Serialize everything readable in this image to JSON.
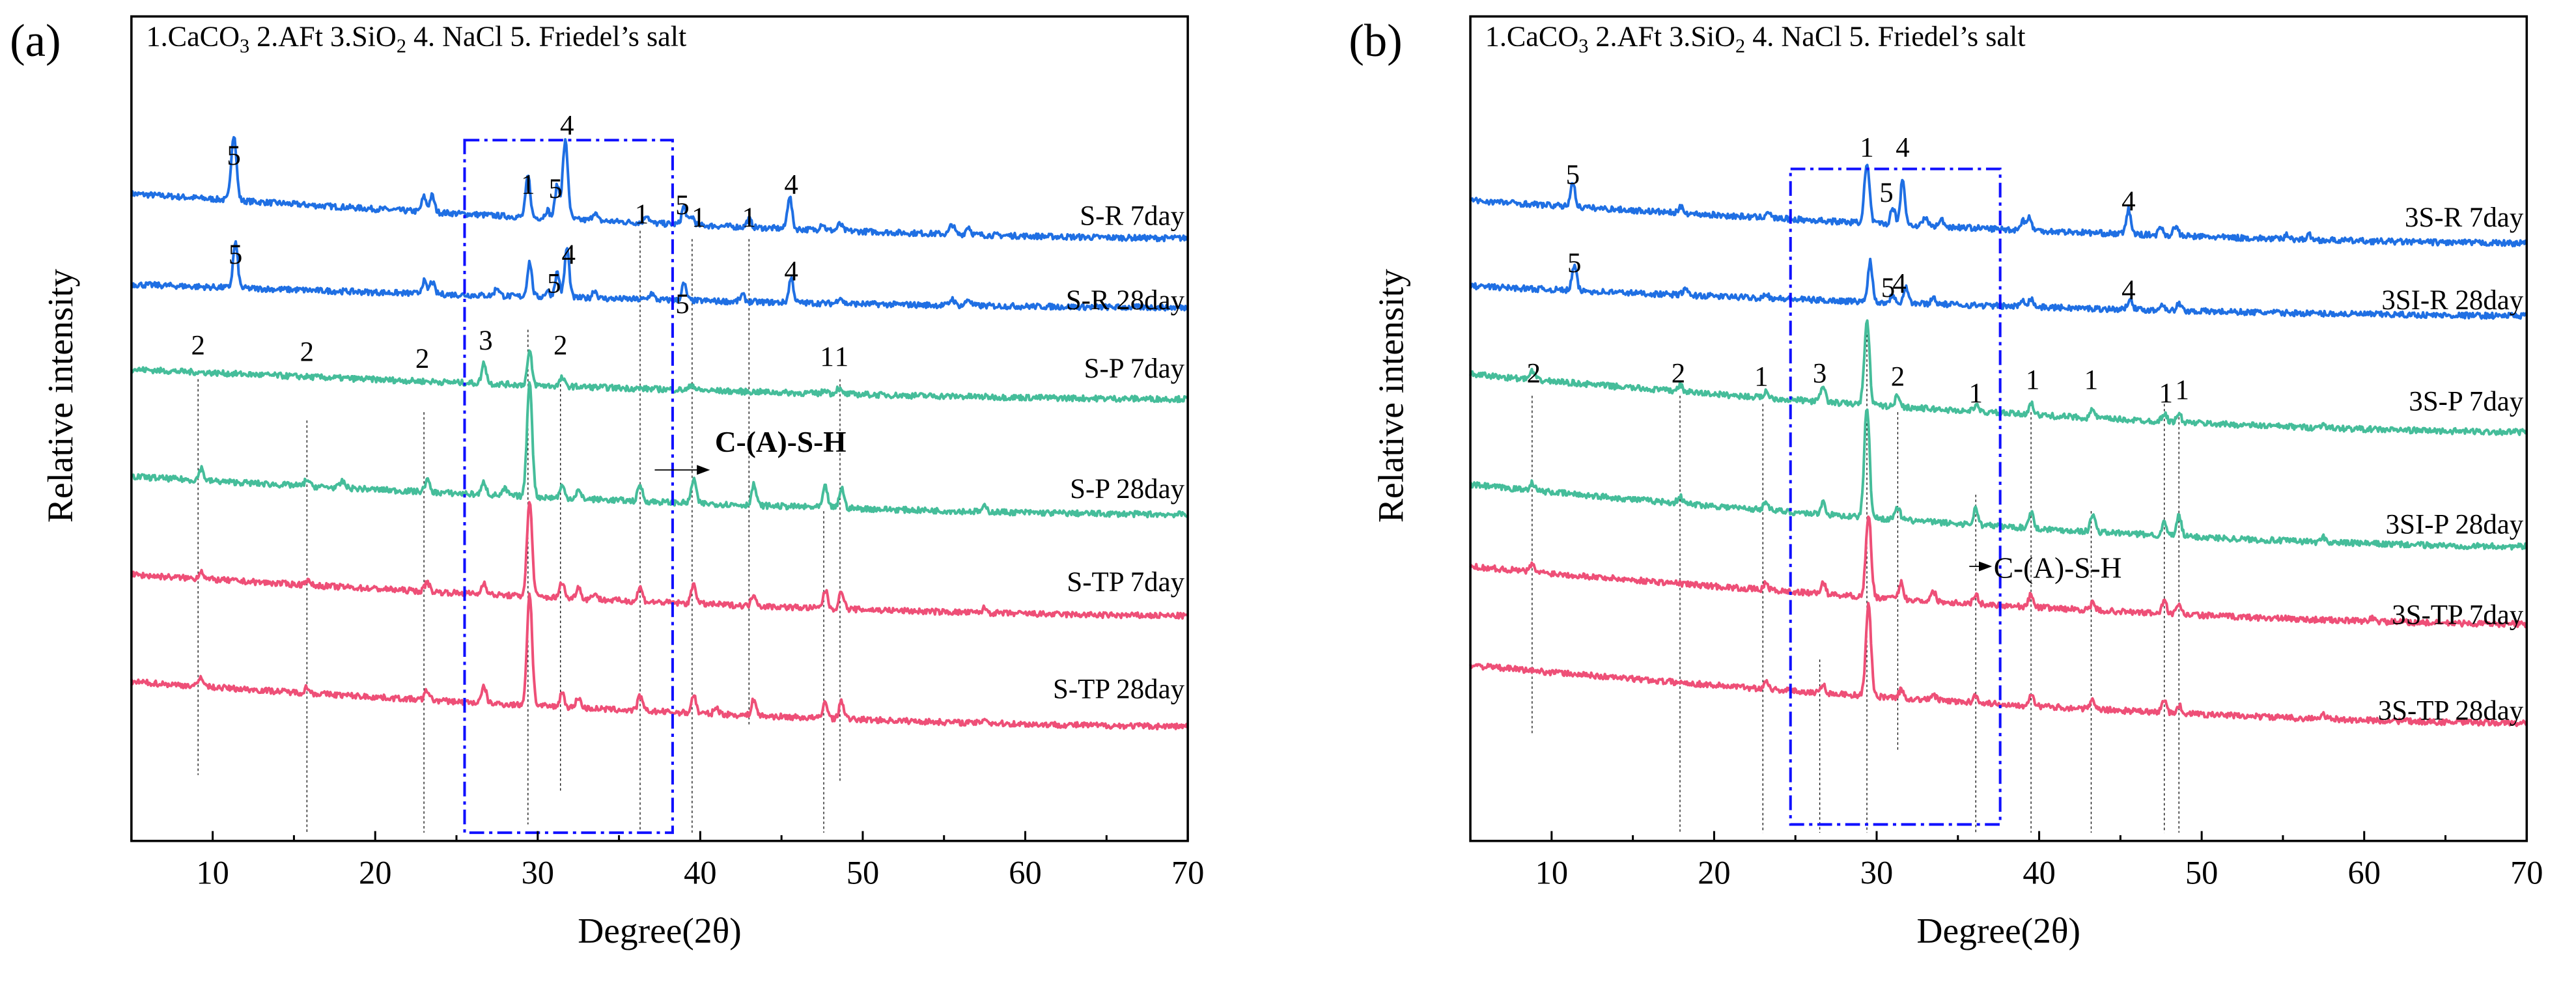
{
  "chart_data": [
    {
      "type": "line",
      "panel_label": "(a)",
      "xlabel": "Degree(2θ)",
      "ylabel": "Relative intensity",
      "xlim": [
        5,
        70
      ],
      "ylim": [
        0,
        100
      ],
      "xticks": [
        10,
        20,
        30,
        40,
        50,
        60,
        70
      ],
      "legend_parts": [
        "1.CaCO",
        "3",
        " 2.AFt  3.SiO",
        "2",
        " 4. NaCl  5. Friedel’s salt"
      ],
      "highlight_box": {
        "x": [
          25.5,
          38.3
        ],
        "y": [
          1,
          85
        ],
        "color": "#1010ff"
      },
      "annotation": {
        "text": "C-(A)-S-H",
        "bold": true,
        "x": 40.9,
        "y": 47.2,
        "arrow_from": 37.2,
        "arrow_to": 40.6,
        "arrow_y": 45
      },
      "series": [
        {
          "name": "S-R 7day",
          "color": "#1f6fe3",
          "start": 78.5,
          "end": 73.1,
          "label_y": 74.7,
          "peaks": [
            [
              11.3,
              8
            ],
            [
              23,
              1.8
            ],
            [
              23.5,
              2
            ],
            [
              29.4,
              5
            ],
            [
              30.6,
              1
            ],
            [
              31.2,
              4
            ],
            [
              31.7,
              9.4
            ],
            [
              33.5,
              1
            ],
            [
              36.7,
              1
            ],
            [
              39,
              2.2
            ],
            [
              39.5,
              1
            ],
            [
              43,
              1
            ],
            [
              45.5,
              4
            ],
            [
              47.5,
              0.8
            ],
            [
              48.6,
              0.8
            ],
            [
              55.5,
              1.2
            ],
            [
              56.5,
              1
            ]
          ]
        },
        {
          "name": "S-R 28day",
          "color": "#1f6fe3",
          "start": 67.5,
          "end": 64.7,
          "label_y": 64.5,
          "peaks": [
            [
              11.4,
              5.5
            ],
            [
              23,
              1.5
            ],
            [
              23.5,
              1.5
            ],
            [
              27.5,
              1
            ],
            [
              29.5,
              4.2
            ],
            [
              30.6,
              0.8
            ],
            [
              31.2,
              3
            ],
            [
              31.8,
              6
            ],
            [
              33.5,
              1
            ],
            [
              37,
              0.8
            ],
            [
              39,
              2
            ],
            [
              42.6,
              0.8
            ],
            [
              45.6,
              3
            ],
            [
              48.6,
              0.8
            ],
            [
              55.5,
              0.8
            ],
            [
              56.5,
              0.8
            ]
          ]
        },
        {
          "name": "S-P 7day",
          "color": "#45bd9a",
          "start": 57.2,
          "end": 53.6,
          "label_y": 56.2,
          "peaks": [
            [
              26.7,
              2.5
            ],
            [
              29.5,
              4
            ],
            [
              31.5,
              1
            ],
            [
              39.5,
              0.7
            ],
            [
              47.7,
              0.5
            ],
            [
              48.5,
              0.7
            ]
          ]
        },
        {
          "name": "S-P 28day",
          "color": "#45bd9a",
          "start": 44.2,
          "end": 39.6,
          "label_y": 41.6,
          "peaks": [
            [
              9.3,
              1.5
            ],
            [
              15.8,
              0.8
            ],
            [
              18,
              0.8
            ],
            [
              23.2,
              1.5
            ],
            [
              26.7,
              1.5
            ],
            [
              28,
              0.8
            ],
            [
              29.5,
              14
            ],
            [
              31.5,
              1.5
            ],
            [
              32.5,
              1
            ],
            [
              36.3,
              2
            ],
            [
              39.6,
              3
            ],
            [
              43.3,
              2.5
            ],
            [
              47.7,
              2.5
            ],
            [
              48.7,
              2.5
            ],
            [
              57.5,
              0.6
            ]
          ]
        },
        {
          "name": "S-TP 7day",
          "color": "#ee4f77",
          "start": 32.3,
          "end": 27.3,
          "label_y": 30.3,
          "peaks": [
            [
              9.3,
              1
            ],
            [
              15.8,
              0.6
            ],
            [
              23.2,
              1.2
            ],
            [
              26.7,
              1.5
            ],
            [
              29.5,
              11.5
            ],
            [
              31.5,
              2
            ],
            [
              32.5,
              1.5
            ],
            [
              33.5,
              0.8
            ],
            [
              36.3,
              1.7
            ],
            [
              39.6,
              2.5
            ],
            [
              43.3,
              1.5
            ],
            [
              47.7,
              2.2
            ],
            [
              48.7,
              2.2
            ],
            [
              57.5,
              0.6
            ]
          ]
        },
        {
          "name": "S-TP 28day",
          "color": "#ee4f77",
          "start": 19.3,
          "end": 13.9,
          "label_y": 17.3,
          "peaks": [
            [
              9.3,
              1.2
            ],
            [
              15.8,
              0.7
            ],
            [
              23.2,
              1.2
            ],
            [
              26.7,
              2
            ],
            [
              29.5,
              13.5
            ],
            [
              31.5,
              1.8
            ],
            [
              32.5,
              1.3
            ],
            [
              36.3,
              1.8
            ],
            [
              39.6,
              2.2
            ],
            [
              41,
              0.8
            ],
            [
              43.3,
              2
            ],
            [
              47.7,
              2
            ],
            [
              48.7,
              2.2
            ],
            [
              57.5,
              0.6
            ]
          ]
        }
      ],
      "peak_labels": [
        {
          "text": "5",
          "x": 11.3,
          "y": 82
        },
        {
          "text": "1",
          "x": 29.4,
          "y": 78.5
        },
        {
          "text": "5",
          "x": 31.1,
          "y": 78
        },
        {
          "text": "4",
          "x": 31.8,
          "y": 85.7
        },
        {
          "text": "1",
          "x": 36.4,
          "y": 74.9
        },
        {
          "text": "5",
          "x": 38.9,
          "y": 76
        },
        {
          "text": "1",
          "x": 39.9,
          "y": 74.5
        },
        {
          "text": "1",
          "x": 43,
          "y": 74.5
        },
        {
          "text": "4",
          "x": 45.6,
          "y": 78.5
        },
        {
          "text": "5",
          "x": 11.4,
          "y": 70
        },
        {
          "text": "5",
          "x": 31,
          "y": 66.5
        },
        {
          "text": "4",
          "x": 31.9,
          "y": 70
        },
        {
          "text": "5",
          "x": 38.9,
          "y": 64
        },
        {
          "text": "4",
          "x": 45.6,
          "y": 68
        },
        {
          "text": "2",
          "x": 9.1,
          "y": 59
        },
        {
          "text": "2",
          "x": 15.8,
          "y": 58.2
        },
        {
          "text": "2",
          "x": 22.9,
          "y": 57.4
        },
        {
          "text": "3",
          "x": 26.8,
          "y": 59.6
        },
        {
          "text": "2",
          "x": 31.4,
          "y": 59
        },
        {
          "text": "1",
          "x": 47.8,
          "y": 57.6
        },
        {
          "text": "1",
          "x": 48.7,
          "y": 57.6
        }
      ],
      "ref_lines": [
        [
          9.1,
          56,
          8
        ],
        [
          15.8,
          51,
          1
        ],
        [
          23,
          52,
          1
        ],
        [
          29.4,
          62,
          2
        ],
        [
          31.4,
          56,
          6
        ],
        [
          36.3,
          74,
          1
        ],
        [
          39.5,
          73,
          1
        ],
        [
          43,
          73,
          14
        ],
        [
          47.6,
          40,
          1
        ],
        [
          48.6,
          56,
          7
        ]
      ]
    },
    {
      "type": "line",
      "panel_label": "(b)",
      "xlabel": "Degree(2θ)",
      "ylabel": "Relative intensity",
      "xlim": [
        5,
        70
      ],
      "ylim": [
        0,
        100
      ],
      "xticks": [
        10,
        20,
        30,
        40,
        50,
        60,
        70
      ],
      "legend_parts": [
        "1.CaCO",
        "3",
        " 2.AFt  3.SiO",
        "2",
        " 4. NaCl  5. Friedel’s salt"
      ],
      "highlight_box": {
        "x": [
          24.7,
          37.6
        ],
        "y": [
          2,
          81.5
        ],
        "color": "#1010ff"
      },
      "annotation": {
        "text": "C-(A)-S-H",
        "bold": false,
        "x": 37.2,
        "y": 31.9,
        "arrow_from": 35.7,
        "arrow_to": 37.1,
        "arrow_y": 33.3
      },
      "series": [
        {
          "name": "3S-R 7day",
          "color": "#1f6fe3",
          "start": 77.7,
          "end": 72.5,
          "label_y": 74.5,
          "peaks": [
            [
              11.3,
              3
            ],
            [
              18,
              0.8
            ],
            [
              23.3,
              0.8
            ],
            [
              29.4,
              7
            ],
            [
              31,
              2
            ],
            [
              31.6,
              5.5
            ],
            [
              33,
              1
            ],
            [
              34,
              0.8
            ],
            [
              39,
              1.2
            ],
            [
              39.4,
              1.5
            ],
            [
              45.5,
              3
            ],
            [
              47.5,
              1
            ],
            [
              48.4,
              1.2
            ],
            [
              55.3,
              0.6
            ],
            [
              56.6,
              0.6
            ]
          ]
        },
        {
          "name": "3SI-R 28day",
          "color": "#1f6fe3",
          "start": 67.3,
          "end": 63.7,
          "label_y": 64.5,
          "peaks": [
            [
              11.4,
              3
            ],
            [
              18.2,
              0.7
            ],
            [
              23.2,
              0.6
            ],
            [
              29.6,
              5
            ],
            [
              31,
              1
            ],
            [
              31.8,
              2
            ],
            [
              33.5,
              0.8
            ],
            [
              39,
              0.9
            ],
            [
              39.5,
              1
            ],
            [
              45.6,
              1.5
            ],
            [
              47.6,
              0.8
            ],
            [
              48.6,
              0.8
            ]
          ]
        },
        {
          "name": "3S-P 7day",
          "color": "#45bd9a",
          "start": 56.6,
          "end": 49.6,
          "label_y": 52.2,
          "peaks": [
            [
              8.8,
              1
            ],
            [
              17.9,
              0.8
            ],
            [
              23.2,
              0.8
            ],
            [
              26.7,
              2
            ],
            [
              29.4,
              10
            ],
            [
              31.3,
              1.5
            ],
            [
              36.1,
              0.8
            ],
            [
              39.5,
              1.5
            ],
            [
              43.3,
              1
            ],
            [
              47.7,
              1
            ],
            [
              48.6,
              1
            ],
            [
              57.5,
              0.5
            ]
          ]
        },
        {
          "name": "3SI-P 28day",
          "color": "#45bd9a",
          "start": 43.2,
          "end": 35.7,
          "label_y": 37.3,
          "peaks": [
            [
              8.8,
              1
            ],
            [
              17.9,
              0.8
            ],
            [
              23.2,
              1.2
            ],
            [
              26.7,
              1.5
            ],
            [
              29.4,
              13.5
            ],
            [
              31.3,
              1.5
            ],
            [
              36.1,
              2
            ],
            [
              39.5,
              2
            ],
            [
              43.3,
              2.2
            ],
            [
              47.7,
              1.5
            ],
            [
              48.6,
              2.5
            ],
            [
              57.5,
              0.6
            ]
          ]
        },
        {
          "name": "3S-TP 7day",
          "color": "#ee4f77",
          "start": 33.3,
          "end": 26.3,
          "label_y": 26.3,
          "peaks": [
            [
              8.8,
              0.8
            ],
            [
              23.2,
              0.8
            ],
            [
              26.7,
              1.5
            ],
            [
              29.5,
              10
            ],
            [
              31.5,
              2
            ],
            [
              33.5,
              1.2
            ],
            [
              36.1,
              1.2
            ],
            [
              39.5,
              1.5
            ],
            [
              43.3,
              0.8
            ],
            [
              47.7,
              1.5
            ],
            [
              48.6,
              1
            ],
            [
              60.5,
              0.5
            ]
          ]
        },
        {
          "name": "3S-TP 28day",
          "color": "#ee4f77",
          "start": 21.3,
          "end": 14.3,
          "label_y": 14.7,
          "peaks": [
            [
              23.2,
              1
            ],
            [
              26.7,
              1
            ],
            [
              29.5,
              11
            ],
            [
              31.5,
              1
            ],
            [
              33.5,
              0.7
            ],
            [
              36.1,
              1
            ],
            [
              39.5,
              1.5
            ],
            [
              43.3,
              1
            ],
            [
              47.7,
              1.5
            ],
            [
              48.6,
              1
            ],
            [
              57.5,
              0.5
            ]
          ]
        }
      ],
      "peak_labels": [
        {
          "text": "5",
          "x": 11.3,
          "y": 79.7
        },
        {
          "text": "1",
          "x": 29.4,
          "y": 83
        },
        {
          "text": "4",
          "x": 31.6,
          "y": 83
        },
        {
          "text": "5",
          "x": 30.6,
          "y": 77.5
        },
        {
          "text": "4",
          "x": 45.5,
          "y": 76.5
        },
        {
          "text": "5",
          "x": 11.4,
          "y": 69
        },
        {
          "text": "5",
          "x": 30.7,
          "y": 66
        },
        {
          "text": "4",
          "x": 31.4,
          "y": 66.5
        },
        {
          "text": "4",
          "x": 45.5,
          "y": 65.7
        },
        {
          "text": "2",
          "x": 8.9,
          "y": 55.6
        },
        {
          "text": "2",
          "x": 17.8,
          "y": 55.6
        },
        {
          "text": "1",
          "x": 22.9,
          "y": 55.2
        },
        {
          "text": "3",
          "x": 26.5,
          "y": 55.6
        },
        {
          "text": "2",
          "x": 31.3,
          "y": 55.2
        },
        {
          "text": "1",
          "x": 36.1,
          "y": 53.2
        },
        {
          "text": "1",
          "x": 39.6,
          "y": 54.8
        },
        {
          "text": "1",
          "x": 43.2,
          "y": 54.8
        },
        {
          "text": "1",
          "x": 47.8,
          "y": 53.2
        },
        {
          "text": "1",
          "x": 48.8,
          "y": 53.6
        }
      ],
      "ref_lines": [
        [
          8.8,
          54,
          13
        ],
        [
          17.9,
          54,
          1
        ],
        [
          23,
          53,
          1
        ],
        [
          26.5,
          22,
          1
        ],
        [
          29.4,
          62,
          1
        ],
        [
          31.3,
          52,
          11
        ],
        [
          36.1,
          42,
          1
        ],
        [
          39.5,
          52,
          1
        ],
        [
          43.2,
          40,
          1
        ],
        [
          47.7,
          53,
          1
        ],
        [
          48.6,
          52,
          1
        ]
      ]
    }
  ]
}
